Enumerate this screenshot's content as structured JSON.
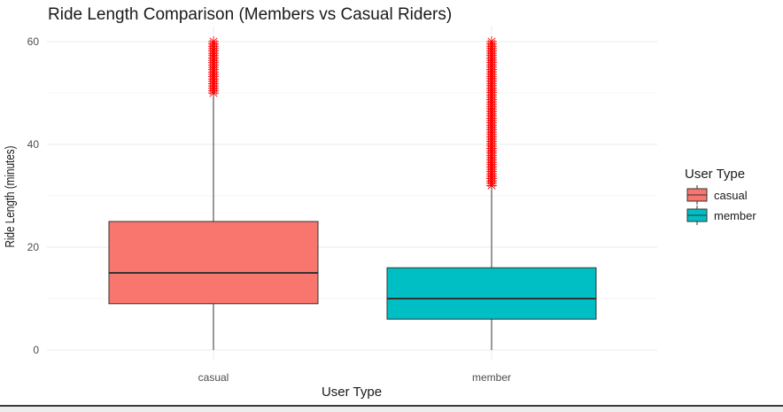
{
  "chart_data": {
    "type": "boxplot",
    "title": "Ride Length Comparison (Members vs Casual Riders)",
    "xlabel": "User Type",
    "ylabel": "Ride Length (minutes)",
    "ylim": [
      -1,
      61
    ],
    "yticks": [
      0,
      20,
      40,
      60
    ],
    "categories": [
      "casual",
      "member"
    ],
    "grid": true,
    "legend": {
      "title": "User Type",
      "position": "right",
      "entries": [
        "casual",
        "member"
      ]
    },
    "outlier_color": "#ff0000",
    "outlier_marker": "asterisk",
    "series": [
      {
        "name": "casual",
        "color": "#f8766d",
        "whisker_low": 0,
        "q1": 9,
        "median": 15,
        "q3": 25,
        "whisker_high": 50,
        "outlier_range": [
          50,
          60
        ]
      },
      {
        "name": "member",
        "color": "#00bfc4",
        "whisker_low": 0,
        "q1": 6,
        "median": 10,
        "q3": 16,
        "whisker_high": 32,
        "outlier_range": [
          32,
          60
        ]
      }
    ]
  }
}
